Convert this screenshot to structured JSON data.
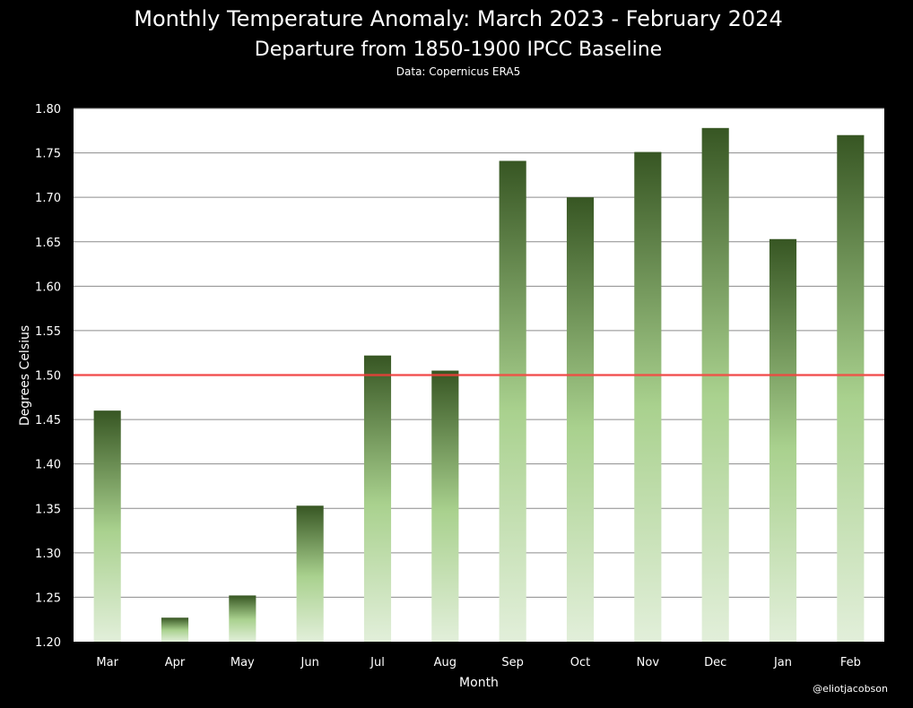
{
  "chart_data": {
    "type": "bar",
    "title": "Monthly Temperature Anomaly: March 2023 - February 2024",
    "subtitle": "Departure from 1850-1900 IPCC Baseline",
    "source": "Data: Copernicus ERA5",
    "xlabel": "Month",
    "ylabel": "Degrees Celsius",
    "categories": [
      "Mar",
      "Apr",
      "May",
      "Jun",
      "Jul",
      "Aug",
      "Sep",
      "Oct",
      "Nov",
      "Dec",
      "Jan",
      "Feb"
    ],
    "values": [
      1.46,
      1.227,
      1.252,
      1.353,
      1.522,
      1.505,
      1.741,
      1.7,
      1.751,
      1.778,
      1.653,
      1.77
    ],
    "ylim": [
      1.2,
      1.8
    ],
    "yticks": [
      "1.20",
      "1.25",
      "1.30",
      "1.35",
      "1.40",
      "1.45",
      "1.50",
      "1.55",
      "1.60",
      "1.65",
      "1.70",
      "1.75",
      "1.80"
    ],
    "reference_line": {
      "value": 1.5,
      "color": "#ff3b3b"
    },
    "grid": true,
    "plot_background": "#ffffff",
    "bar_gradient": {
      "top": "#375623",
      "middle": "#a9d18e",
      "bottom": "#e2efda"
    },
    "credit": "@eliotjacobson"
  }
}
